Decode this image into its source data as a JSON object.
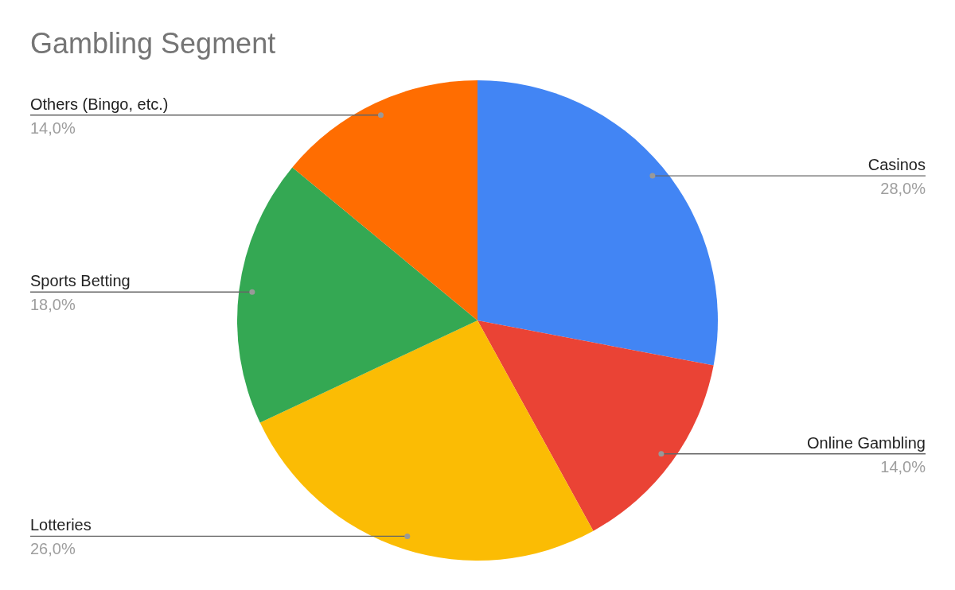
{
  "chart_data": {
    "type": "pie",
    "title": "Gambling Segment",
    "categories": [
      "Casinos",
      "Online Gambling",
      "Lotteries",
      "Sports Betting",
      "Others (Bingo, etc.)"
    ],
    "values": [
      28,
      14,
      26,
      18,
      14
    ],
    "value_labels": [
      "28,0%",
      "14,0%",
      "26,0%",
      "18,0%",
      "14,0%"
    ],
    "colors": [
      "#4285f4",
      "#ea4335",
      "#fbbc04",
      "#34a853",
      "#ff6d01"
    ]
  }
}
